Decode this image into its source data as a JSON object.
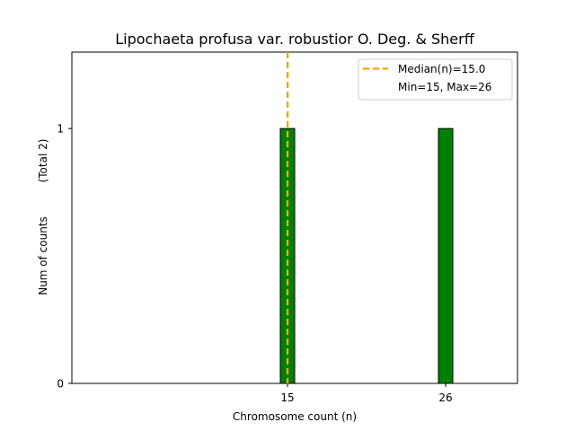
{
  "chart_data": {
    "type": "bar",
    "title": "Lipochaeta profusa var. robustior O. Deg. & Sherff",
    "xlabel": "Chromosome count (n)",
    "ylabel": "Num of counts",
    "ylabel_total": "(Total 2)",
    "x": [
      15,
      26
    ],
    "values": [
      1,
      1
    ],
    "bar_color": "#008000",
    "bar_edge_color": "#000000",
    "xlim": [
      0.0,
      31.0
    ],
    "ylim": [
      0,
      1.3
    ],
    "xticks": [
      15,
      26
    ],
    "xtick_labels": [
      "15",
      "26"
    ],
    "yticks": [
      0,
      1
    ],
    "ytick_labels": [
      "0",
      "1"
    ],
    "bar_width": 1.0,
    "median": 15.0,
    "median_color": "#FFA500",
    "legend": {
      "position": "top-right",
      "entries": [
        "Median(n)=15.0",
        "Min=15, Max=26"
      ]
    },
    "baseline_end": 29.5
  }
}
